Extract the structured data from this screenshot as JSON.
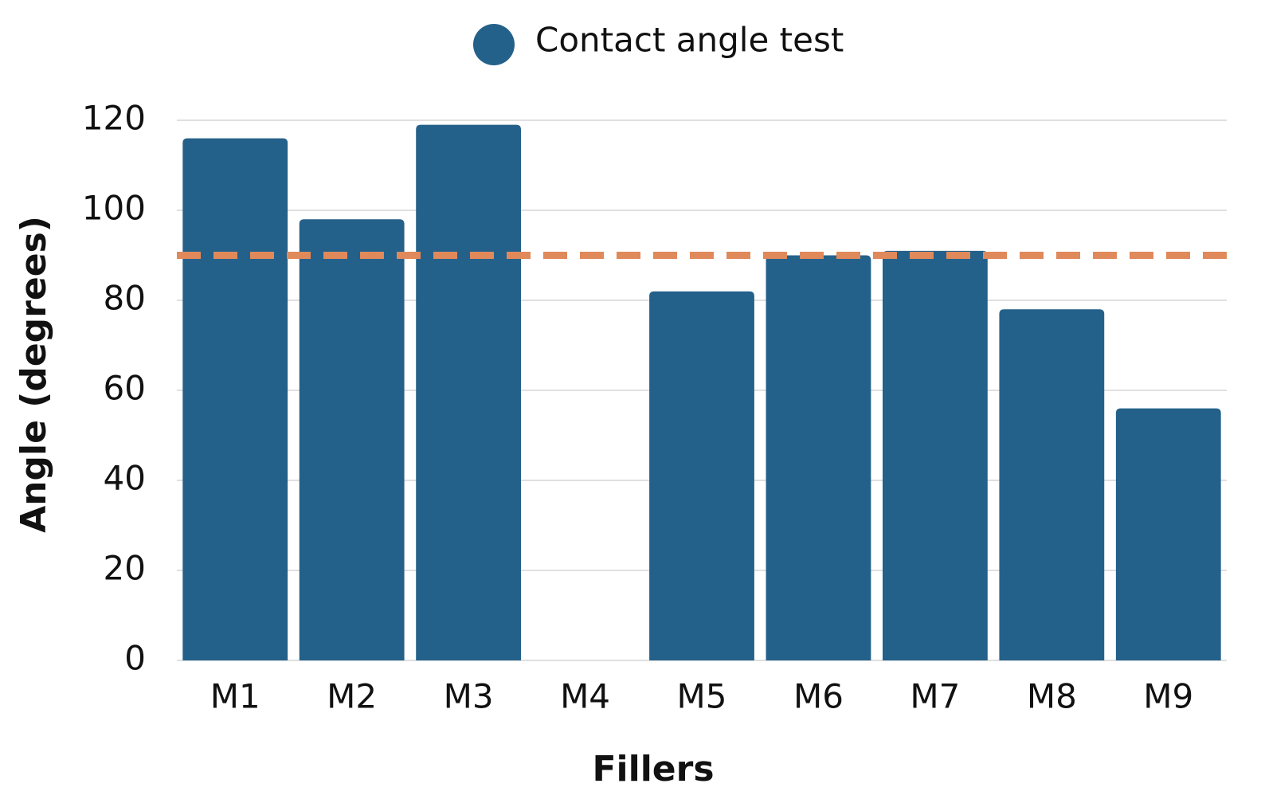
{
  "chart_data": {
    "type": "bar",
    "x_label": "Fillers",
    "y_label": "Angle (degrees)",
    "categories": [
      "M1",
      "M2",
      "M3",
      "M4",
      "M5",
      "M6",
      "M7",
      "M8",
      "M9"
    ],
    "series": [
      {
        "name": "Contact angle test",
        "color": "#24618a",
        "values": [
          116,
          98,
          119,
          null,
          82,
          90,
          91,
          78,
          56
        ]
      }
    ],
    "reference_line": 90,
    "reference_color": "#e0895a",
    "ylim": [
      0,
      120
    ],
    "yticks": [
      0,
      20,
      40,
      60,
      80,
      100,
      120
    ],
    "grid": true
  }
}
